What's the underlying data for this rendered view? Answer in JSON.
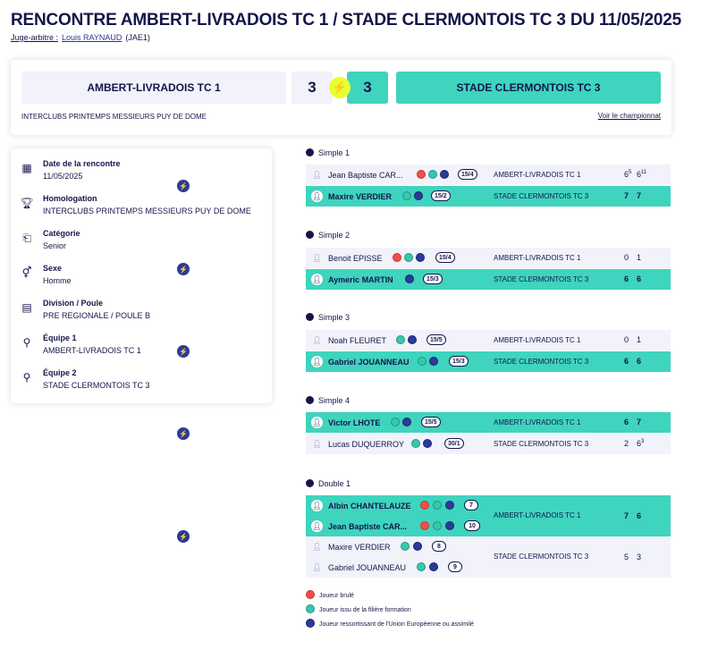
{
  "header": {
    "title": "RENCONTRE AMBERT-LIVRADOIS TC 1 / STADE CLERMONTOIS TC 3 DU 11/05/2025",
    "referee_label": "Juge-arbitre :",
    "referee_name": "Louis RAYNAUD",
    "referee_code": "(JAE1)"
  },
  "scoreboard": {
    "home_team": "AMBERT-LIVRADOIS TC 1",
    "away_team": "STADE CLERMONTOIS TC 3",
    "home_score": "3",
    "away_score": "3",
    "competition": "INTERCLUBS PRINTEMPS MESSIEURS PUY DE DOME",
    "champ_link": "Voir le championnat"
  },
  "info": [
    {
      "icon": "calendar-icon",
      "label": "Date de la rencontre",
      "value": "11/05/2025"
    },
    {
      "icon": "trophy-icon",
      "label": "Homologation",
      "value": "INTERCLUBS PRINTEMPS MESSIEURS PUY DE DOME"
    },
    {
      "icon": "category-icon",
      "label": "Catégorie",
      "value": "Senior"
    },
    {
      "icon": "gender-icon",
      "label": "Sexe",
      "value": "Homme"
    },
    {
      "icon": "division-icon",
      "label": "Division / Poule",
      "value": "PRE REGIONALE / POULE B"
    },
    {
      "icon": "team1-icon",
      "label": "Équipe 1",
      "value": "AMBERT-LIVRADOIS TC 1"
    },
    {
      "icon": "team2-icon",
      "label": "Équipe 2",
      "value": "STADE CLERMONTOIS TC 3"
    }
  ],
  "matches": {
    "simple1": {
      "title": "Simple 1",
      "p1_name": "Jean Baptiste CAR...",
      "p1_rank": "15/4",
      "p1_team": "AMBERT-LIVRADOIS TC 1",
      "p1_s1": "6",
      "p1_s1_tb": "5",
      "p1_s2": "6",
      "p1_s2_tb": "11",
      "p2_name": "Maxire VERDIER",
      "p2_rank": "15/2",
      "p2_team": "STADE CLERMONTOIS TC 3",
      "p2_s1": "7",
      "p2_s2": "7"
    },
    "simple2": {
      "title": "Simple 2",
      "p1_name": "Benoit EPISSE",
      "p1_rank": "15/4",
      "p1_team": "AMBERT-LIVRADOIS TC 1",
      "p1_s1": "0",
      "p1_s2": "1",
      "p2_name": "Aymeric MARTIN",
      "p2_rank": "15/3",
      "p2_team": "STADE CLERMONTOIS TC 3",
      "p2_s1": "6",
      "p2_s2": "6"
    },
    "simple3": {
      "title": "Simple 3",
      "p1_name": "Noah FLEURET",
      "p1_rank": "15/5",
      "p1_team": "AMBERT-LIVRADOIS TC 1",
      "p1_s1": "0",
      "p1_s2": "1",
      "p2_name": "Gabriel JOUANNEAU",
      "p2_rank": "15/3",
      "p2_team": "STADE CLERMONTOIS TC 3",
      "p2_s1": "6",
      "p2_s2": "6"
    },
    "simple4": {
      "title": "Simple 4",
      "p1_name": "Victor LHOTE",
      "p1_rank": "15/5",
      "p1_team": "AMBERT-LIVRADOIS TC 1",
      "p1_s1": "6",
      "p1_s2": "7",
      "p2_name": "Lucas DUQUERROY",
      "p2_rank": "30/1",
      "p2_team": "STADE CLERMONTOIS TC 3",
      "p2_s1": "2",
      "p2_s2": "6",
      "p2_s2_tb": "3"
    },
    "double1": {
      "title": "Double 1",
      "a1_name": "Albin CHANTELAUZE",
      "a1_rank": "7",
      "a2_name": "Jean Baptiste CAR...",
      "a2_rank": "10",
      "a_team": "AMBERT-LIVRADOIS TC 1",
      "a_s1": "7",
      "a_s2": "6",
      "b1_name": "Maxire VERDIER",
      "b1_rank": "8",
      "b2_name": "Gabriel JOUANNEAU",
      "b2_rank": "9",
      "b_team": "STADE CLERMONTOIS TC 3",
      "b_s1": "5",
      "b_s2": "3"
    }
  },
  "legend": {
    "burned": "Joueur brulé",
    "formation": "Joueur issu de la filière formation",
    "eu": "Joueur ressortissant de l'Union Européenne ou assimilé"
  },
  "colors": {
    "accent": "#3fd4be",
    "navy": "#14164a",
    "bolt": "#e8ff2e",
    "burned": "#f0504b",
    "eu": "#2c3a9a"
  }
}
